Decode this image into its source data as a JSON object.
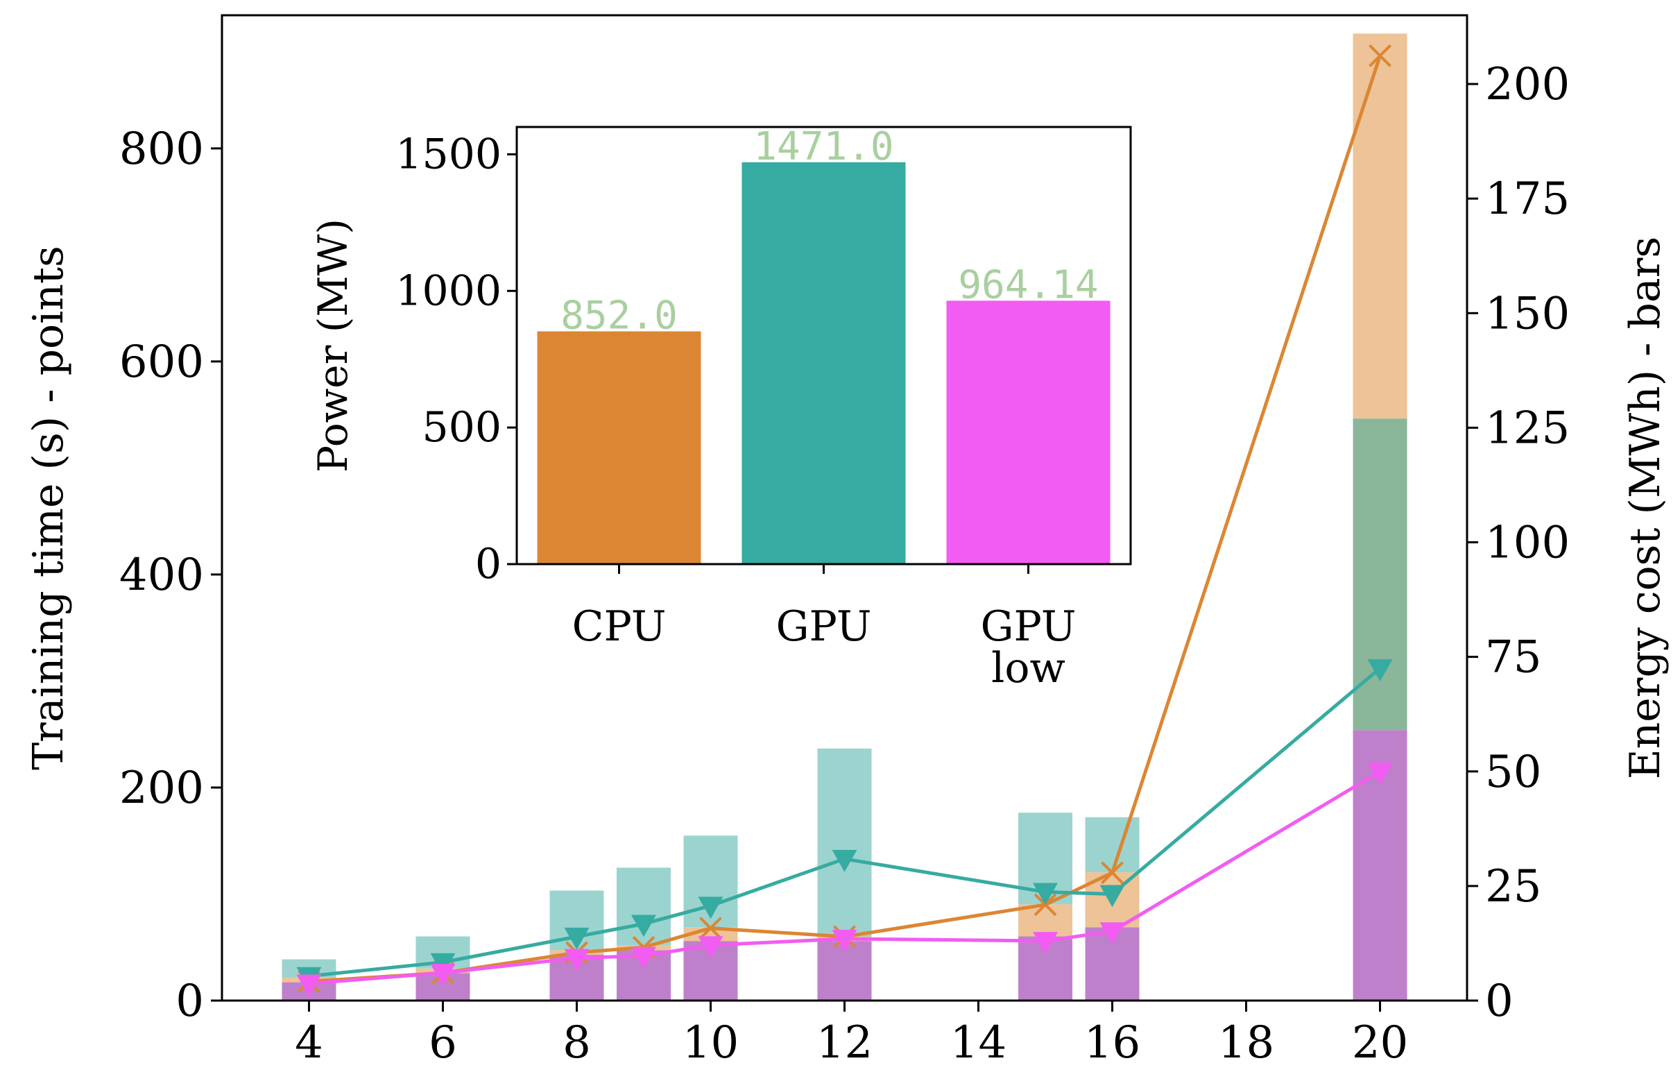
{
  "chart_data": [
    {
      "type": "bar+line",
      "title": "",
      "xlabel": "",
      "ylabel": "Training time (s) - points",
      "y2label": "Energy cost (MWh) - bars",
      "xlim": [
        2.7,
        21.3
      ],
      "ylim": [
        0,
        925
      ],
      "y2lim": [
        0,
        215
      ],
      "x_ticks": [
        4,
        6,
        8,
        10,
        12,
        14,
        16,
        18,
        20
      ],
      "y_ticks": [
        0,
        200,
        400,
        600,
        800
      ],
      "y2_ticks": [
        0,
        25,
        50,
        75,
        100,
        125,
        150,
        175,
        200
      ],
      "colors": {
        "CPU": "#dc8633",
        "GPU": "#36aba1",
        "GPU low": "#f25cf2"
      },
      "bar_colors": {
        "CPU": "#edc397",
        "GPU": "#9bd4cf",
        "GPU low": "#bf80cb",
        "overlap": "#8ab69a"
      },
      "bars": [
        {
          "x": 4,
          "GPU": 9,
          "CPU": 5,
          "GPU low": 4
        },
        {
          "x": 6,
          "GPU": 14,
          "CPU": 7,
          "GPU low": 6
        },
        {
          "x": 8,
          "GPU": 24,
          "CPU": 11,
          "GPU low": 10
        },
        {
          "x": 9,
          "GPU": 29,
          "CPU": 12,
          "GPU low": 11
        },
        {
          "x": 10,
          "GPU": 36,
          "CPU": 16,
          "GPU low": 13
        },
        {
          "x": 12,
          "GPU": 55,
          "CPU": 14,
          "GPU low": 13
        },
        {
          "x": 15,
          "GPU": 41,
          "CPU": 21,
          "GPU low": 14
        },
        {
          "x": 16,
          "GPU": 40,
          "CPU": 28,
          "GPU low": 16
        },
        {
          "x": 20,
          "GPU": 127,
          "CPU": 211,
          "GPU low": 59
        }
      ],
      "series": [
        {
          "key": "CPU",
          "marker": "x",
          "x": [
            4,
            6,
            8,
            9,
            10,
            12,
            15,
            16,
            20
          ],
          "y": [
            18,
            26,
            45,
            50,
            68,
            60,
            90,
            120,
            887
          ]
        },
        {
          "key": "GPU",
          "marker": "triangle-down",
          "x": [
            4,
            6,
            8,
            9,
            10,
            12,
            15,
            16,
            20
          ],
          "y": [
            23,
            36,
            60,
            72,
            89,
            133,
            102,
            100,
            312
          ]
        },
        {
          "key": "GPU low",
          "marker": "triangle-down",
          "x": [
            4,
            6,
            8,
            9,
            10,
            12,
            15,
            16,
            20
          ],
          "y": [
            16,
            26,
            40,
            42,
            52,
            58,
            56,
            65,
            215
          ]
        }
      ]
    },
    {
      "type": "bar",
      "title": "",
      "xlabel": "",
      "ylabel": "Power (MW)",
      "ylim": [
        0,
        1600
      ],
      "y_ticks": [
        0,
        500,
        1000,
        1500
      ],
      "categories": [
        "CPU",
        "GPU",
        "GPU low"
      ],
      "category_lines": [
        [
          "CPU"
        ],
        [
          "GPU"
        ],
        [
          "GPU",
          "low"
        ]
      ],
      "values": [
        852.0,
        1471.0,
        964.14
      ],
      "value_labels": [
        "852.0",
        "1471.0",
        "964.14"
      ],
      "colors": [
        "#dc8633",
        "#36aba1",
        "#f25cf2"
      ]
    }
  ]
}
